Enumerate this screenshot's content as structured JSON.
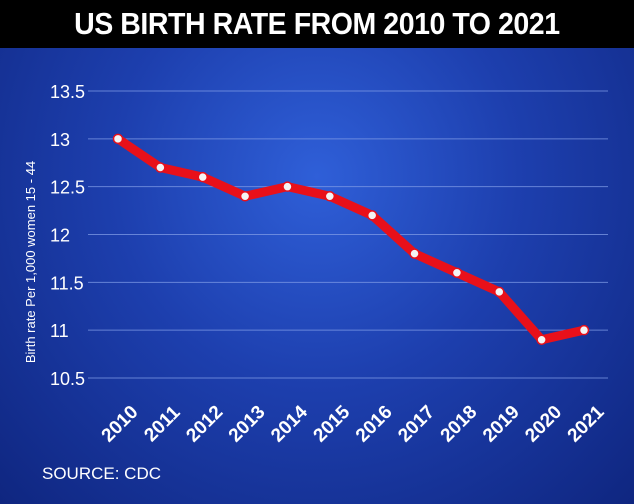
{
  "header": {
    "title": "US BIRTH RATE FROM 2010 TO 2021"
  },
  "footer": {
    "source": "SOURCE: CDC"
  },
  "colors": {
    "line": "#e8101a",
    "marker_fill": "#f4f4f4",
    "grid": "#7f9be6",
    "text": "#ffffff",
    "title_bg": "#000000"
  },
  "chart_data": {
    "type": "line",
    "title": "US BIRTH RATE FROM 2010 TO 2021",
    "xlabel": "",
    "ylabel": "Birth rate Per 1,000 women 15 - 44",
    "categories": [
      "2010",
      "2011",
      "2012",
      "2013",
      "2014",
      "2015",
      "2016",
      "2017",
      "2018",
      "2019",
      "2020",
      "2021"
    ],
    "values": [
      13.0,
      12.7,
      12.6,
      12.4,
      12.5,
      12.4,
      12.2,
      11.8,
      11.6,
      11.4,
      10.9,
      11.0
    ],
    "yticks": [
      "13.5",
      "13",
      "12.5",
      "12",
      "11.5",
      "11",
      "10.5"
    ],
    "ylim": [
      10.5,
      13.5
    ],
    "grid": true,
    "legend": "none"
  }
}
